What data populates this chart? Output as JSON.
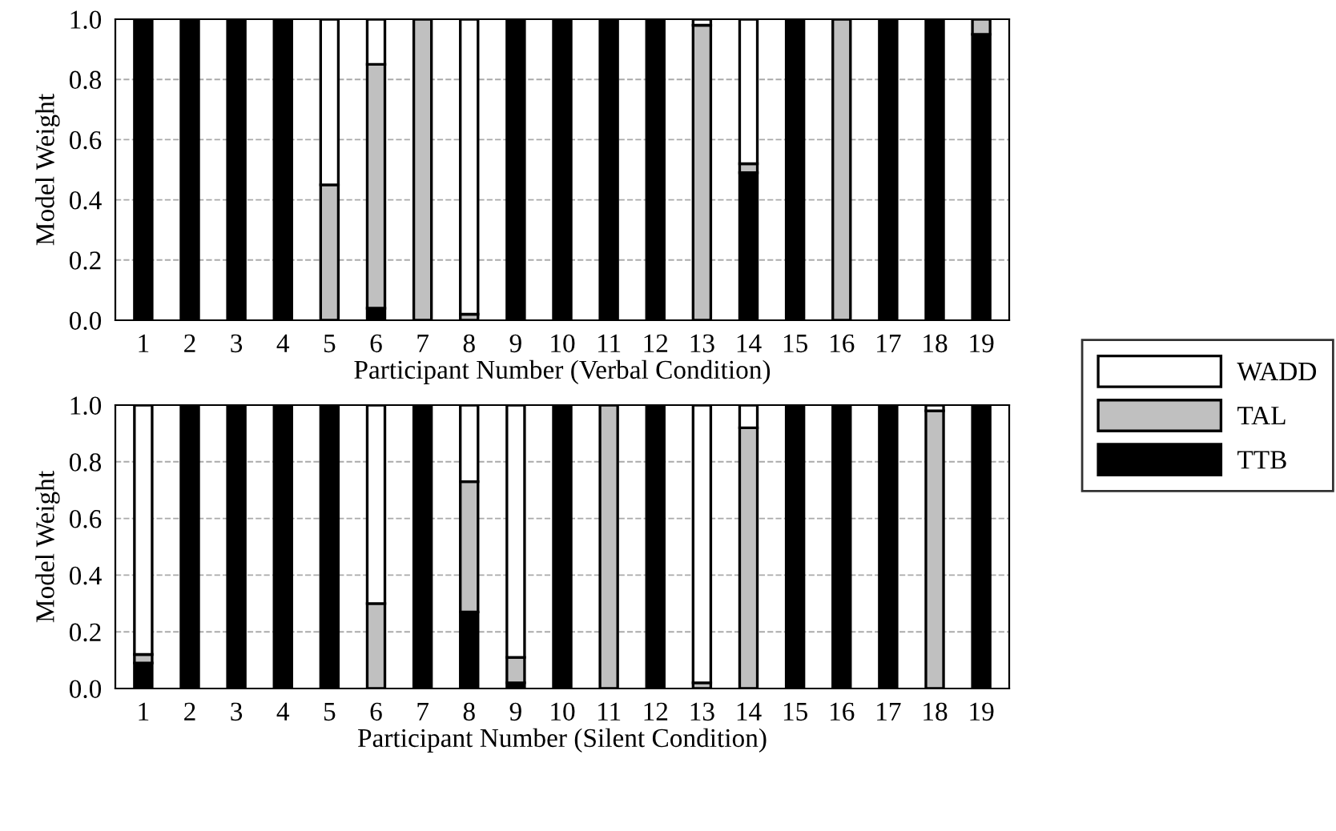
{
  "chart_data": [
    {
      "type": "bar",
      "stacked": true,
      "xlabel": "Participant Number (Verbal Condition)",
      "ylabel": "Model Weight",
      "categories": [
        "1",
        "2",
        "3",
        "4",
        "5",
        "6",
        "7",
        "8",
        "9",
        "10",
        "11",
        "12",
        "13",
        "14",
        "15",
        "16",
        "17",
        "18",
        "19"
      ],
      "ylim": [
        0,
        1
      ],
      "yticks": [
        {
          "value": 0,
          "label": "0.0"
        },
        {
          "value": 0.2,
          "label": "0.2"
        },
        {
          "value": 0.4,
          "label": "0.4"
        },
        {
          "value": 0.6,
          "label": "0.6"
        },
        {
          "value": 0.8,
          "label": "0.8"
        },
        {
          "value": 1,
          "label": "1.0"
        }
      ],
      "grid": "y",
      "legend": "right",
      "series": [
        {
          "name": "TTB",
          "color": "#000000",
          "values": [
            1,
            1,
            1,
            1,
            null,
            0.04,
            null,
            null,
            1,
            1,
            1,
            1,
            null,
            0.49,
            1,
            null,
            1,
            1,
            0.95
          ]
        },
        {
          "name": "TAL",
          "color": "#c0c0c0",
          "values": [
            null,
            null,
            null,
            null,
            0.45,
            0.81,
            1,
            0.02,
            null,
            null,
            null,
            null,
            0.98,
            0.03,
            null,
            1,
            null,
            null,
            0.05
          ]
        },
        {
          "name": "WADD",
          "color": "#ffffff",
          "values": [
            null,
            null,
            null,
            null,
            0.55,
            0.15,
            null,
            0.98,
            null,
            null,
            null,
            null,
            0.02,
            0.48,
            null,
            null,
            null,
            null,
            null
          ]
        }
      ]
    },
    {
      "type": "bar",
      "stacked": true,
      "xlabel": "Participant Number (Silent Condition)",
      "ylabel": "Model Weight",
      "categories": [
        "1",
        "2",
        "3",
        "4",
        "5",
        "6",
        "7",
        "8",
        "9",
        "10",
        "11",
        "12",
        "13",
        "14",
        "15",
        "16",
        "17",
        "18",
        "19"
      ],
      "ylim": [
        0,
        1
      ],
      "yticks": [
        {
          "value": 0,
          "label": "0.0"
        },
        {
          "value": 0.2,
          "label": "0.2"
        },
        {
          "value": 0.4,
          "label": "0.4"
        },
        {
          "value": 0.6,
          "label": "0.6"
        },
        {
          "value": 0.8,
          "label": "0.8"
        },
        {
          "value": 1,
          "label": "1.0"
        }
      ],
      "grid": "y",
      "series": [
        {
          "color": "#000000",
          "values": [
            0.09,
            1,
            1,
            1,
            1,
            null,
            1,
            0.27,
            0.02,
            1,
            null,
            1,
            null,
            null,
            1,
            1,
            1,
            null,
            1
          ]
        },
        {
          "color": "#c0c0c0",
          "values": [
            0.03,
            null,
            null,
            null,
            null,
            0.3,
            null,
            0.46,
            0.09,
            null,
            1,
            null,
            0.02,
            0.92,
            null,
            null,
            null,
            0.98,
            null
          ]
        },
        {
          "color": "#ffffff",
          "values": [
            0.88,
            null,
            null,
            null,
            null,
            0.7,
            null,
            0.27,
            0.89,
            null,
            null,
            null,
            0.98,
            0.08,
            null,
            null,
            null,
            0.02,
            null
          ]
        }
      ]
    }
  ]
}
